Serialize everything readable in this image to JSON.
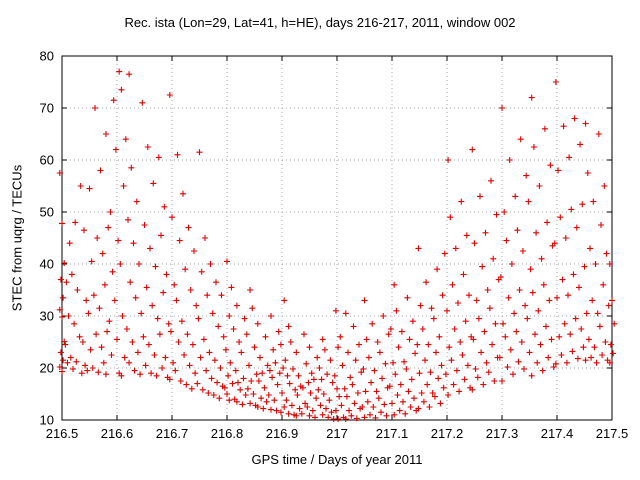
{
  "chart_data": {
    "type": "scatter",
    "title": "Rec. ista (Lon=29, Lat=41, h=HE), days 216-217, 2011, window 002",
    "xlabel": "GPS time / Days of year 2011",
    "ylabel": "STEC from uqrg / TECUs",
    "xlim": [
      216.5,
      217.5
    ],
    "ylim": [
      10,
      80
    ],
    "grid": true,
    "legend": "none",
    "marker": "plus",
    "marker_color": "#e00000",
    "x_ticks": [
      {
        "v": 216.5,
        "l": "216.5"
      },
      {
        "v": 216.6,
        "l": "216.6"
      },
      {
        "v": 216.7,
        "l": "216.7"
      },
      {
        "v": 216.8,
        "l": "216.8"
      },
      {
        "v": 216.9,
        "l": "216.9"
      },
      {
        "v": 217.0,
        "l": "217"
      },
      {
        "v": 217.1,
        "l": "217.1"
      },
      {
        "v": 217.2,
        "l": "217.2"
      },
      {
        "v": 217.3,
        "l": "217.3"
      },
      {
        "v": 217.4,
        "l": "217.4"
      },
      {
        "v": 217.5,
        "l": "217.5"
      }
    ],
    "y_ticks": [
      {
        "v": 10,
        "l": "10"
      },
      {
        "v": 20,
        "l": "20"
      },
      {
        "v": 30,
        "l": "30"
      },
      {
        "v": 40,
        "l": "40"
      },
      {
        "v": 50,
        "l": "50"
      },
      {
        "v": 60,
        "l": "60"
      },
      {
        "v": 70,
        "l": "70"
      },
      {
        "v": 80,
        "l": "80"
      }
    ],
    "columns": [
      [
        216.5,
        [
          57.5,
          47.8,
          40.2,
          37.0,
          33.5,
          31.2,
          29.8,
          25.1,
          23.0,
          21.5,
          20.2,
          19.3
        ]
      ],
      [
        216.51,
        [
          44.0,
          36.5,
          30.0,
          24.5,
          21.0
        ]
      ],
      [
        216.52,
        [
          48.0,
          38.0,
          28.5,
          22.0,
          19.8
        ]
      ],
      [
        216.53,
        [
          55.0,
          35.0,
          26.0,
          21.2
        ]
      ],
      [
        216.54,
        [
          46.5,
          33.0,
          25.0,
          20.5,
          19.0
        ]
      ],
      [
        216.55,
        [
          54.5,
          40.5,
          30.5,
          23.5,
          19.5
        ]
      ],
      [
        216.56,
        [
          70.0,
          45.0,
          34.0,
          26.5,
          20.0
        ]
      ],
      [
        216.57,
        [
          58.0,
          42.0,
          31.5,
          24.0,
          19.2
        ]
      ],
      [
        216.58,
        [
          65.0,
          47.0,
          36.0,
          27.0,
          21.0,
          18.8
        ]
      ],
      [
        216.59,
        [
          71.5,
          50.0,
          38.5,
          29.0,
          22.5
        ]
      ],
      [
        216.6,
        [
          77.0,
          62.0,
          44.5,
          33.0,
          25.5,
          19.0
        ]
      ],
      [
        216.61,
        [
          73.5,
          55.0,
          40.0,
          30.0,
          22.0,
          18.5
        ]
      ],
      [
        216.62,
        [
          76.5,
          64.0,
          48.5,
          36.5,
          27.5,
          21.0
        ]
      ],
      [
        216.63,
        [
          58.5,
          44.0,
          33.5,
          25.0,
          19.5
        ]
      ],
      [
        216.64,
        [
          52.0,
          40.0,
          30.5,
          23.0,
          18.8
        ]
      ],
      [
        216.65,
        [
          71.0,
          47.5,
          35.5,
          26.0,
          20.5
        ]
      ],
      [
        216.66,
        [
          62.5,
          43.0,
          32.0,
          24.5,
          19.0
        ]
      ],
      [
        216.67,
        [
          55.5,
          39.5,
          29.5,
          22.5,
          18.5
        ]
      ],
      [
        216.68,
        [
          60.5,
          45.5,
          34.5,
          26.5,
          20.0
        ]
      ],
      [
        216.69,
        [
          51.0,
          38.0,
          28.5,
          22.0,
          18.2
        ]
      ],
      [
        216.7,
        [
          72.5,
          49.0,
          36.0,
          27.0,
          21.0,
          17.8
        ]
      ],
      [
        216.71,
        [
          61.0,
          44.5,
          33.0,
          25.0,
          19.5
        ]
      ],
      [
        216.72,
        [
          53.5,
          39.0,
          29.0,
          22.5,
          17.5
        ]
      ],
      [
        216.73,
        [
          47.0,
          35.0,
          26.5,
          20.5,
          16.8
        ]
      ],
      [
        216.74,
        [
          42.5,
          32.0,
          24.5,
          19.0,
          16.0
        ]
      ],
      [
        216.75,
        [
          61.5,
          38.5,
          29.5,
          22.0,
          17.0
        ]
      ],
      [
        216.76,
        [
          45.0,
          34.0,
          25.5,
          19.5,
          15.8
        ]
      ],
      [
        216.77,
        [
          40.0,
          30.5,
          23.0,
          18.0,
          15.2
        ]
      ],
      [
        216.78,
        [
          36.5,
          28.0,
          21.5,
          17.2,
          14.8
        ]
      ],
      [
        216.79,
        [
          34.0,
          26.0,
          20.0,
          16.5,
          14.2
        ]
      ],
      [
        216.8,
        [
          40.5,
          30.0,
          23.5,
          18.5,
          16.2,
          15.0,
          13.8
        ]
      ],
      [
        216.81,
        [
          35.5,
          27.5,
          21.0,
          17.0,
          14.0
        ]
      ],
      [
        216.82,
        [
          32.0,
          25.0,
          19.5,
          17.2,
          15.8,
          13.5
        ]
      ],
      [
        216.83,
        [
          29.5,
          23.0,
          18.0,
          14.8,
          13.0
        ]
      ],
      [
        216.84,
        [
          35.0,
          26.5,
          20.5,
          17.5,
          16.0,
          13.2
        ]
      ],
      [
        216.85,
        [
          31.5,
          24.0,
          18.8,
          15.0,
          12.8
        ]
      ],
      [
        216.86,
        [
          28.5,
          22.0,
          19.0,
          17.5,
          14.2,
          12.5
        ]
      ],
      [
        216.87,
        [
          26.0,
          20.5,
          16.2,
          13.5,
          12.2
        ]
      ],
      [
        216.88,
        [
          30.0,
          23.5,
          19.5,
          18.2,
          14.8,
          12.0
        ]
      ],
      [
        216.89,
        [
          27.0,
          21.0,
          16.8,
          13.8,
          11.8
        ]
      ],
      [
        216.9,
        [
          33.0,
          24.5,
          20.0,
          19.0,
          15.2,
          12.5,
          11.5
        ]
      ],
      [
        216.91,
        [
          28.0,
          21.5,
          18.5,
          17.0,
          13.8,
          11.2
        ]
      ],
      [
        216.92,
        [
          25.0,
          19.8,
          15.8,
          12.8,
          11.0
        ]
      ],
      [
        216.93,
        [
          23.0,
          18.5,
          16.5,
          14.8,
          12.2,
          10.8
        ]
      ],
      [
        216.94,
        [
          26.5,
          20.8,
          16.2,
          13.2,
          11.2
        ]
      ],
      [
        216.95,
        [
          24.0,
          19.0,
          17.2,
          15.2,
          12.5,
          10.8
        ]
      ],
      [
        216.96,
        [
          22.0,
          17.8,
          14.2,
          11.8,
          10.5
        ]
      ],
      [
        216.97,
        [
          25.5,
          20.0,
          17.8,
          15.8,
          12.8,
          11.0
        ]
      ],
      [
        216.98,
        [
          23.5,
          18.8,
          15.0,
          12.2,
          10.5
        ]
      ],
      [
        216.99,
        [
          21.5,
          17.2,
          13.8,
          11.5,
          10.2
        ]
      ],
      [
        217.0,
        [
          31.0,
          24.0,
          18.5,
          16.0,
          14.5,
          11.8,
          10.2
        ]
      ],
      [
        217.01,
        [
          26.0,
          20.5,
          16.0,
          12.8,
          10.5
        ]
      ],
      [
        217.02,
        [
          30.5,
          23.0,
          18.2,
          14.5,
          11.8,
          10.2
        ]
      ],
      [
        217.03,
        [
          28.0,
          21.5,
          16.8,
          13.2,
          10.8
        ]
      ],
      [
        217.04,
        [
          24.5,
          19.2,
          15.2,
          12.2,
          10.3
        ]
      ],
      [
        217.05,
        [
          33.0,
          25.5,
          19.8,
          15.5,
          12.5,
          10.5
        ]
      ],
      [
        217.06,
        [
          28.5,
          22.0,
          17.2,
          13.5,
          11.0
        ]
      ],
      [
        217.07,
        [
          25.0,
          19.5,
          15.5,
          12.5,
          10.4
        ]
      ],
      [
        217.08,
        [
          30.0,
          23.0,
          18.0,
          14.2,
          11.5
        ]
      ],
      [
        217.09,
        [
          26.5,
          20.8,
          16.2,
          13.0,
          10.8
        ]
      ],
      [
        217.1,
        [
          36.0,
          27.5,
          21.0,
          16.5,
          13.2,
          11.0
        ]
      ],
      [
        217.11,
        [
          31.0,
          24.0,
          18.8,
          14.8,
          11.8
        ]
      ],
      [
        217.12,
        [
          27.0,
          21.2,
          16.8,
          13.5,
          11.2
        ]
      ],
      [
        217.13,
        [
          33.5,
          25.5,
          19.8,
          15.5,
          12.5
        ]
      ],
      [
        217.14,
        [
          29.0,
          22.8,
          17.8,
          14.2,
          11.8
        ]
      ],
      [
        217.15,
        [
          43.0,
          32.0,
          24.5,
          19.0,
          15.2,
          12.2
        ]
      ],
      [
        217.16,
        [
          36.5,
          27.5,
          21.5,
          16.8,
          13.5
        ]
      ],
      [
        217.17,
        [
          31.5,
          24.5,
          19.2,
          15.2,
          12.5
        ]
      ],
      [
        217.18,
        [
          39.0,
          29.5,
          23.0,
          18.0,
          14.5
        ]
      ],
      [
        217.19,
        [
          34.0,
          26.0,
          20.5,
          16.2,
          13.2
        ]
      ],
      [
        217.2,
        [
          60.0,
          42.0,
          31.0,
          24.0,
          18.8,
          14.8
        ]
      ],
      [
        217.21,
        [
          49.0,
          36.0,
          27.5,
          21.5,
          16.8
        ]
      ],
      [
        217.22,
        [
          43.0,
          32.5,
          25.0,
          19.5,
          15.5
        ]
      ],
      [
        217.23,
        [
          52.0,
          38.0,
          29.0,
          22.5,
          17.8
        ]
      ],
      [
        217.24,
        [
          45.5,
          34.0,
          26.0,
          20.5,
          16.2
        ]
      ],
      [
        217.25,
        [
          62.0,
          44.0,
          33.0,
          25.5,
          19.8,
          15.8
        ]
      ],
      [
        217.26,
        [
          53.0,
          39.5,
          29.5,
          23.0,
          18.2
        ]
      ],
      [
        217.27,
        [
          46.0,
          35.0,
          27.0,
          21.0,
          16.8
        ]
      ],
      [
        217.28,
        [
          56.0,
          41.0,
          31.5,
          24.5,
          19.2
        ]
      ],
      [
        217.29,
        [
          49.5,
          37.0,
          28.5,
          22.0,
          17.5
        ]
      ],
      [
        217.3,
        [
          70.0,
          50.0,
          37.5,
          28.5,
          22.0,
          17.5
        ]
      ],
      [
        217.31,
        [
          60.0,
          44.5,
          33.5,
          26.0,
          20.2
        ]
      ],
      [
        217.32,
        [
          53.0,
          40.0,
          30.5,
          23.5,
          18.8
        ]
      ],
      [
        217.33,
        [
          64.0,
          46.5,
          35.0,
          27.0,
          21.2
        ]
      ],
      [
        217.34,
        [
          57.0,
          42.5,
          32.0,
          25.0,
          19.8
        ]
      ],
      [
        217.35,
        [
          72.0,
          52.0,
          39.0,
          29.5,
          23.0,
          18.5
        ]
      ],
      [
        217.36,
        [
          62.5,
          46.0,
          34.5,
          26.5,
          21.0
        ]
      ],
      [
        217.37,
        [
          55.0,
          41.0,
          31.0,
          24.5,
          19.5
        ]
      ],
      [
        217.38,
        [
          66.0,
          48.0,
          36.0,
          28.0,
          22.0
        ]
      ],
      [
        217.39,
        [
          59.0,
          43.5,
          33.0,
          25.5,
          20.2
        ]
      ],
      [
        217.4,
        [
          75.0,
          58.0,
          44.0,
          33.5,
          26.0,
          20.8
        ]
      ],
      [
        217.41,
        [
          66.5,
          49.0,
          37.0,
          28.5,
          22.5
        ]
      ],
      [
        217.42,
        [
          60.5,
          45.0,
          34.0,
          26.5,
          21.0
        ]
      ],
      [
        217.43,
        [
          68.0,
          50.5,
          38.0,
          29.5,
          23.2
        ]
      ],
      [
        217.44,
        [
          63.0,
          47.0,
          35.5,
          27.5,
          21.8
        ]
      ],
      [
        217.45,
        [
          67.0,
          51.5,
          39.5,
          30.5,
          24.0,
          21.5
        ]
      ],
      [
        217.46,
        [
          57.5,
          43.0,
          33.0,
          25.5,
          22.0
        ]
      ],
      [
        217.47,
        [
          52.0,
          40.0,
          30.5,
          24.0,
          21.0
        ]
      ],
      [
        217.48,
        [
          65.0,
          47.5,
          36.0,
          28.0,
          22.5
        ]
      ],
      [
        217.49,
        [
          55.0,
          42.0,
          32.0,
          25.0,
          21.5
        ]
      ],
      [
        217.5,
        [
          40.0,
          33.0,
          28.5,
          24.5,
          22.8,
          21.0
        ]
      ]
    ]
  }
}
